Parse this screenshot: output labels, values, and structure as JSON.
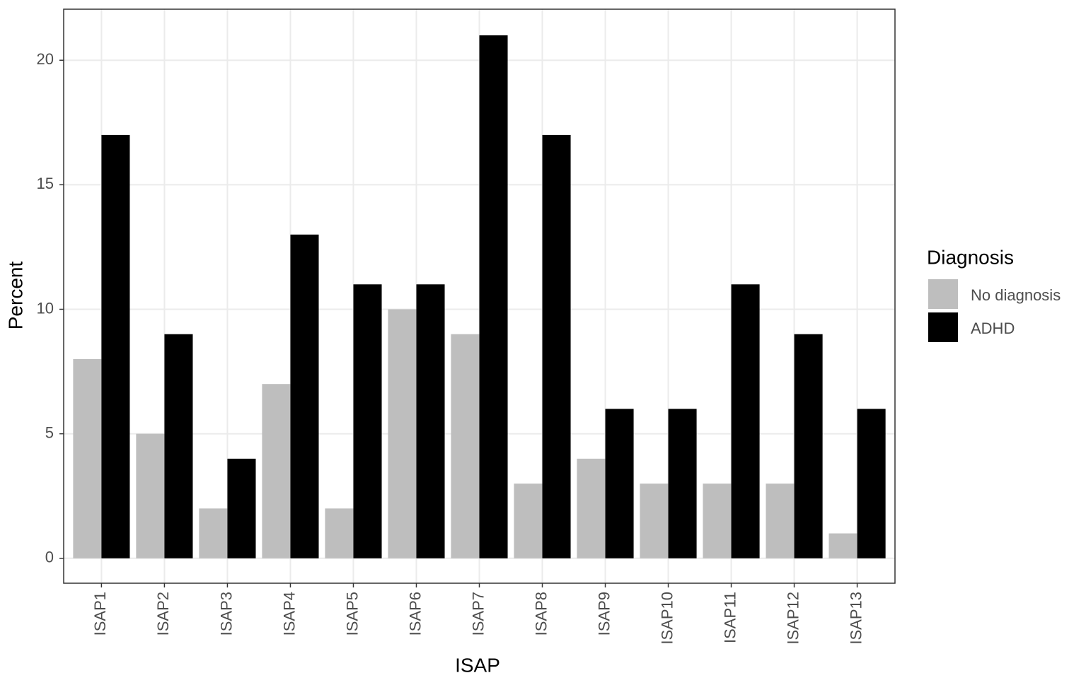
{
  "chart_data": {
    "type": "bar",
    "x_label": "ISAP",
    "y_label": "Percent",
    "categories": [
      "ISAP1",
      "ISAP2",
      "ISAP3",
      "ISAP4",
      "ISAP5",
      "ISAP6",
      "ISAP7",
      "ISAP8",
      "ISAP9",
      "ISAP10",
      "ISAP11",
      "ISAP12",
      "ISAP13"
    ],
    "series": [
      {
        "name": "No diagnosis",
        "color": "#bebebe",
        "values": [
          8,
          5,
          2,
          7,
          2,
          10,
          9,
          3,
          4,
          3,
          3,
          3,
          1
        ]
      },
      {
        "name": "ADHD",
        "color": "#000000",
        "values": [
          17,
          9,
          4,
          13,
          11,
          11,
          21,
          17,
          6,
          6,
          11,
          9,
          6
        ]
      }
    ],
    "legend_title": "Diagnosis",
    "legend_position": "right",
    "ylim": [
      -1.0,
      22.05
    ],
    "yticks": [
      0,
      5,
      10,
      15,
      20
    ],
    "grid": true
  }
}
